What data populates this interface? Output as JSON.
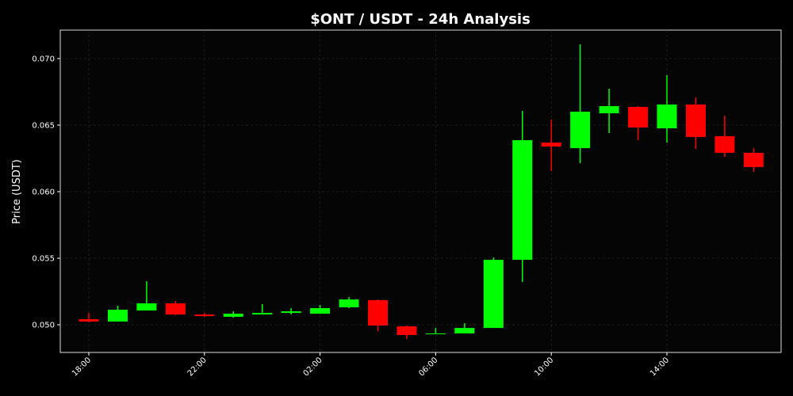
{
  "chart_data": {
    "type": "candlestick",
    "title": "$ONT / USDT - 24h Analysis",
    "y_label": "Price (USDT)",
    "categories": [
      "18:00",
      null,
      null,
      null,
      "22:00",
      null,
      null,
      null,
      "02:00",
      null,
      null,
      null,
      "06:00",
      null,
      null,
      null,
      "10:00",
      null,
      null,
      null,
      "14:00",
      null,
      null,
      null
    ],
    "open": [
      0.05042,
      0.05024,
      0.05107,
      0.05161,
      0.05077,
      0.0506,
      0.05077,
      0.05089,
      0.05083,
      0.05131,
      0.05185,
      0.04988,
      0.04929,
      0.04935,
      0.04976,
      0.05488,
      0.06369,
      0.06327,
      0.06589,
      0.06637,
      0.06476,
      0.06655,
      0.06417,
      0.06292
    ],
    "high": [
      0.05089,
      0.05143,
      0.05327,
      0.05179,
      0.05089,
      0.05101,
      0.05155,
      0.05125,
      0.05149,
      0.05208,
      0.0519,
      0.04994,
      0.04976,
      0.05012,
      0.05506,
      0.06607,
      0.06542,
      0.07107,
      0.06774,
      0.06643,
      0.06875,
      0.06708,
      0.06571,
      0.06327
    ],
    "low": [
      0.05018,
      0.05024,
      0.05107,
      0.05071,
      0.0506,
      0.05054,
      0.05077,
      0.05077,
      0.05083,
      0.05125,
      0.04952,
      0.04893,
      0.04929,
      0.04935,
      0.04976,
      0.05321,
      0.06155,
      0.06214,
      0.0644,
      0.06387,
      0.06369,
      0.06321,
      0.06262,
      0.06149
    ],
    "close": [
      0.05024,
      0.05113,
      0.05161,
      0.05077,
      0.05065,
      0.05083,
      0.05089,
      0.05101,
      0.05125,
      0.0519,
      0.04994,
      0.04923,
      0.04935,
      0.04976,
      0.05488,
      0.06387,
      0.06339,
      0.06601,
      0.06643,
      0.06482,
      0.06655,
      0.06411,
      0.06292,
      0.06185
    ],
    "up_color": "#00ff00",
    "down_color": "#ff0000",
    "ylim": [
      0.04792,
      0.07214
    ],
    "yticks": [
      {
        "value": 0.05,
        "label": "0.050"
      },
      {
        "value": 0.055,
        "label": "0.055"
      },
      {
        "value": 0.06,
        "label": "0.060"
      },
      {
        "value": 0.065,
        "label": "0.065"
      },
      {
        "value": 0.07,
        "label": "0.070"
      }
    ],
    "grid": true
  }
}
